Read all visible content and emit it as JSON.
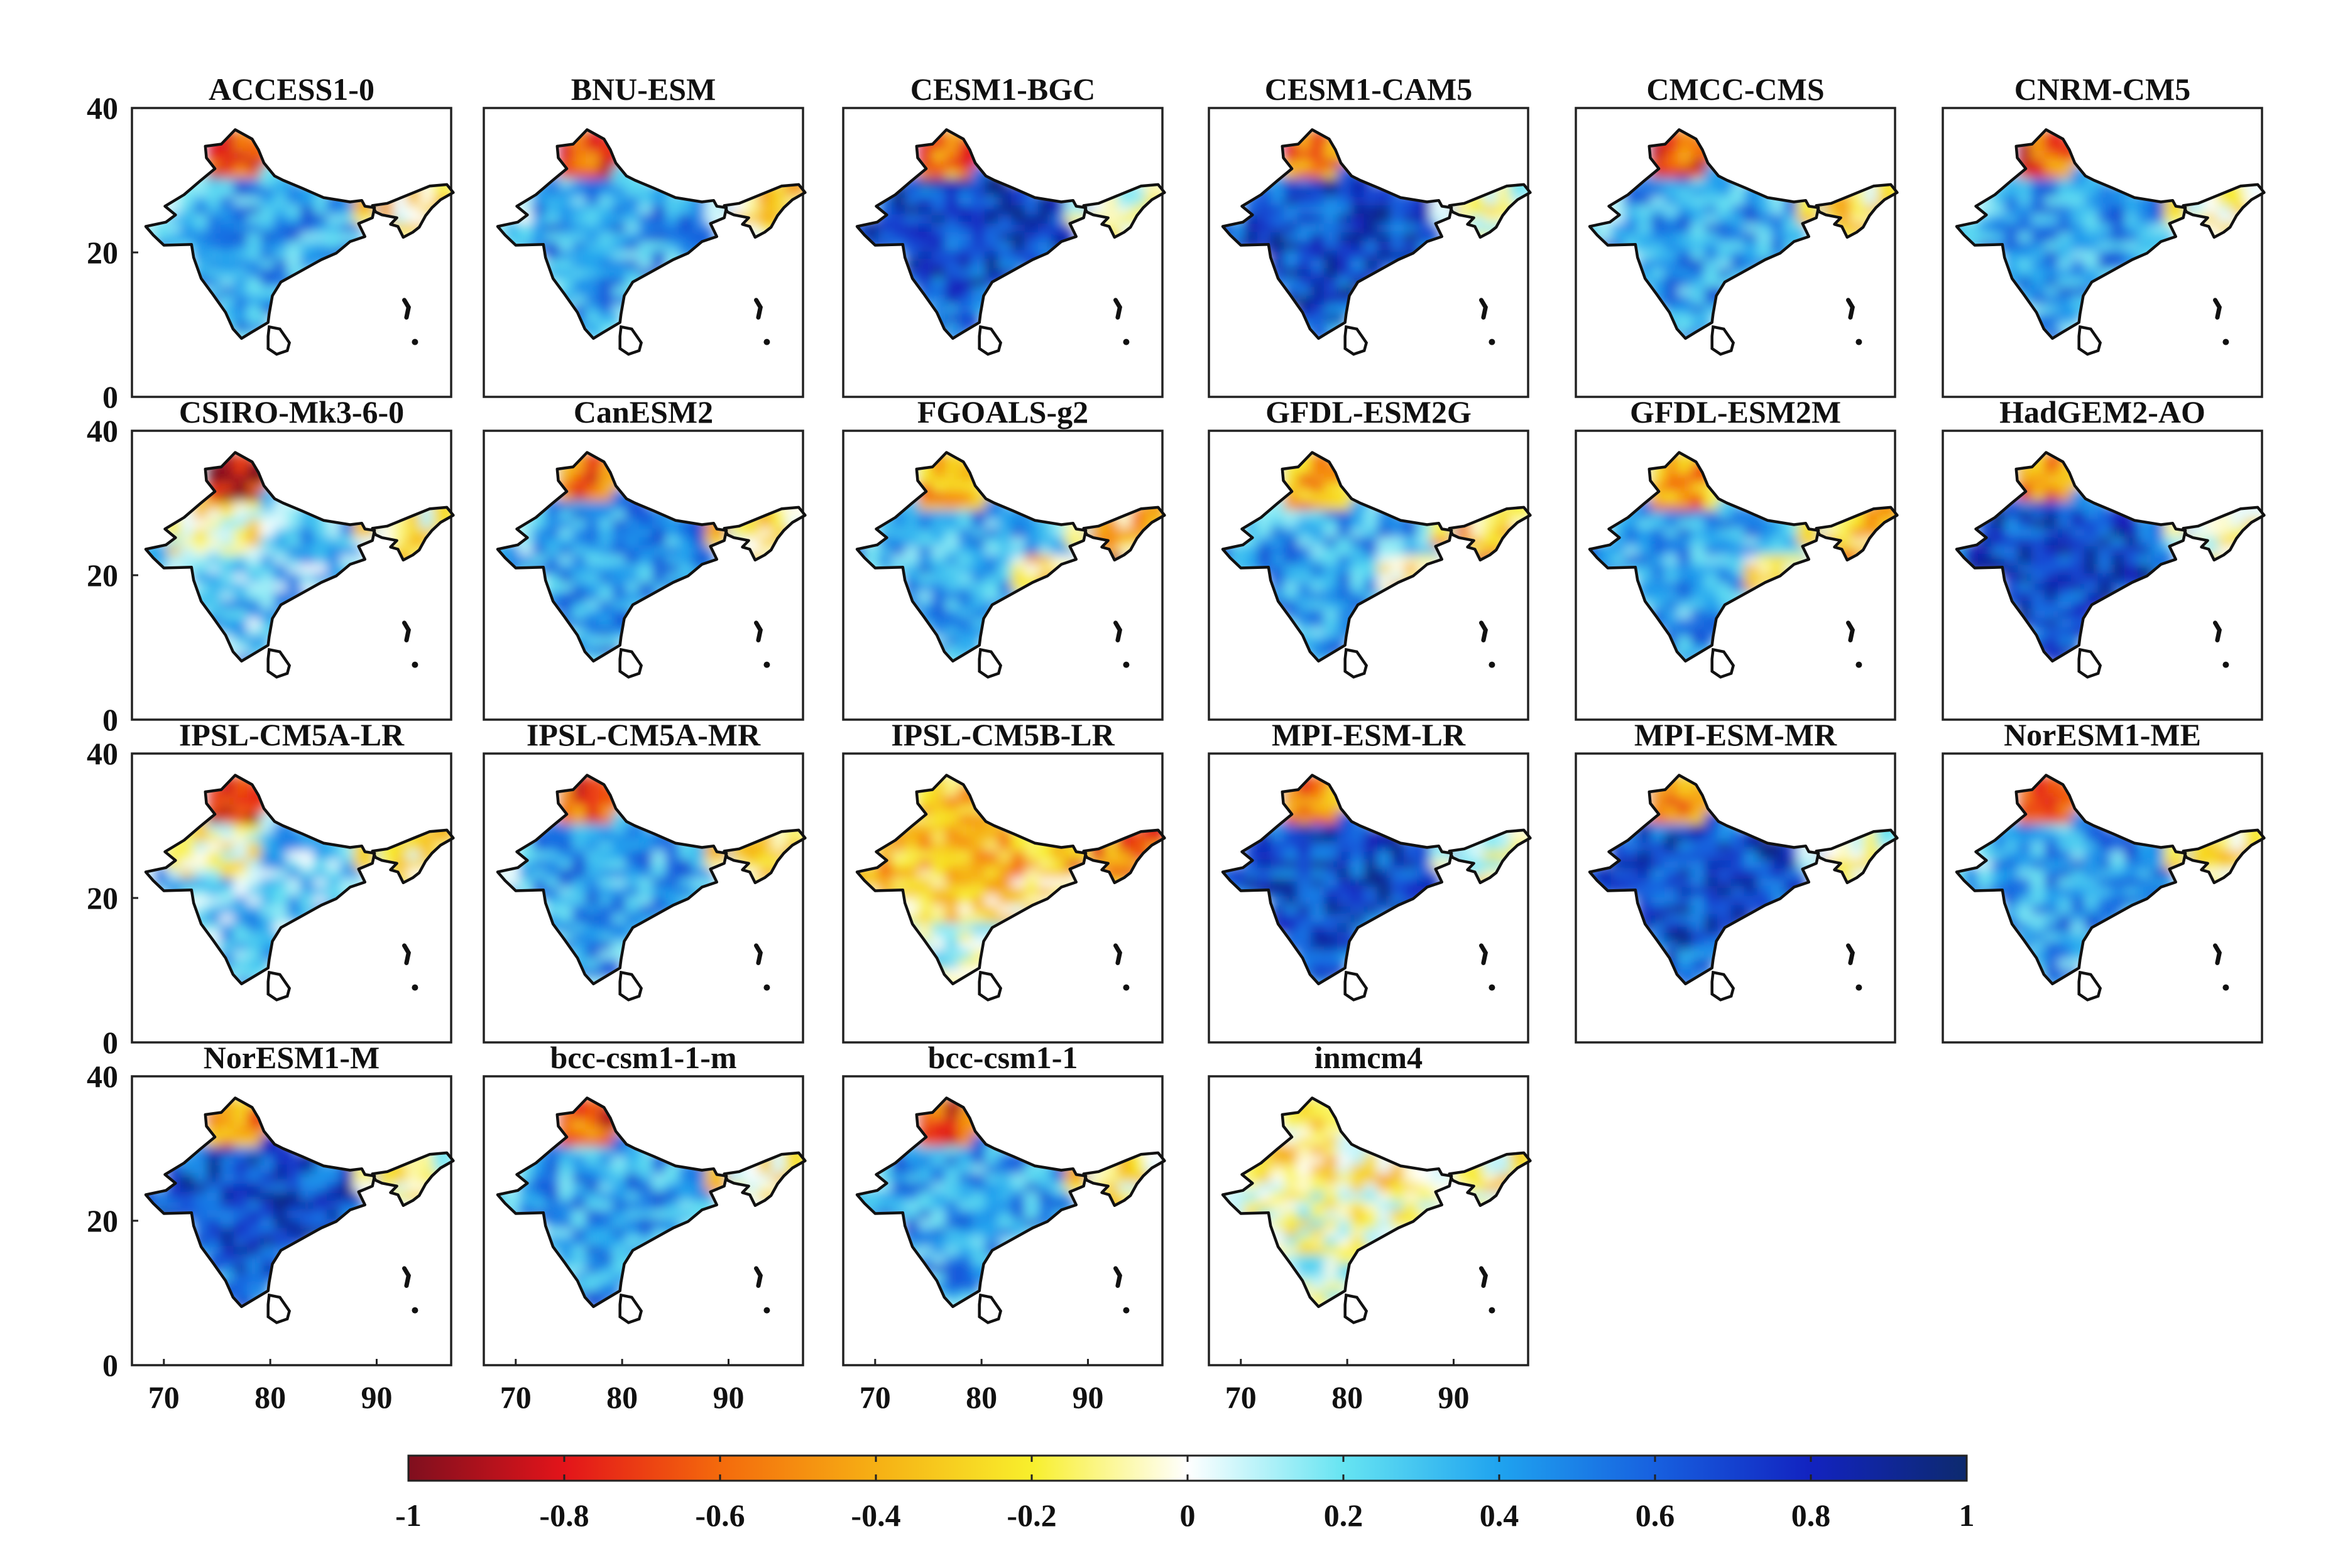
{
  "figure": {
    "panels": [
      {
        "title": "ACCESS1-0",
        "pattern": "mid"
      },
      {
        "title": "BNU-ESM",
        "pattern": "mid"
      },
      {
        "title": "CESM1-BGC",
        "pattern": "strong"
      },
      {
        "title": "CESM1-CAM5",
        "pattern": "strong"
      },
      {
        "title": "CMCC-CMS",
        "pattern": "mid"
      },
      {
        "title": "CNRM-CM5",
        "pattern": "mid"
      },
      {
        "title": "CSIRO-Mk3-6-0",
        "pattern": "weak"
      },
      {
        "title": "CanESM2",
        "pattern": "mid"
      },
      {
        "title": "FGOALS-g2",
        "pattern": "mixed"
      },
      {
        "title": "GFDL-ESM2G",
        "pattern": "mixed"
      },
      {
        "title": "GFDL-ESM2M",
        "pattern": "mixed"
      },
      {
        "title": "HadGEM2-AO",
        "pattern": "strong"
      },
      {
        "title": "IPSL-CM5A-LR",
        "pattern": "weak"
      },
      {
        "title": "IPSL-CM5A-MR",
        "pattern": "mid"
      },
      {
        "title": "IPSL-CM5B-LR",
        "pattern": "negative"
      },
      {
        "title": "MPI-ESM-LR",
        "pattern": "strong"
      },
      {
        "title": "MPI-ESM-MR",
        "pattern": "strong"
      },
      {
        "title": "NorESM1-ME",
        "pattern": "mid"
      },
      {
        "title": "NorESM1-M",
        "pattern": "strong"
      },
      {
        "title": "bcc-csm1-1-m",
        "pattern": "mid"
      },
      {
        "title": "bcc-csm1-1",
        "pattern": "mid"
      },
      {
        "title": "inmcm4",
        "pattern": "neutral"
      }
    ],
    "y_ticks": [
      0,
      20,
      40
    ],
    "x_ticks": [
      70,
      80,
      90
    ],
    "x_range": [
      67,
      97
    ],
    "y_range": [
      0,
      40
    ],
    "colorbar": {
      "range": [
        -1,
        1
      ],
      "ticks": [
        "-1",
        "-0.8",
        "-0.6",
        "-0.4",
        "-0.2",
        "0",
        "0.2",
        "0.4",
        "0.6",
        "0.8",
        "1"
      ],
      "stops": [
        "#7f0f1e",
        "#e3141a",
        "#f46a0c",
        "#f6b014",
        "#f8ef2c",
        "#ffffff",
        "#66e4f2",
        "#1fa3ef",
        "#1760df",
        "#1223c0",
        "#0d2a6e"
      ]
    }
  }
}
